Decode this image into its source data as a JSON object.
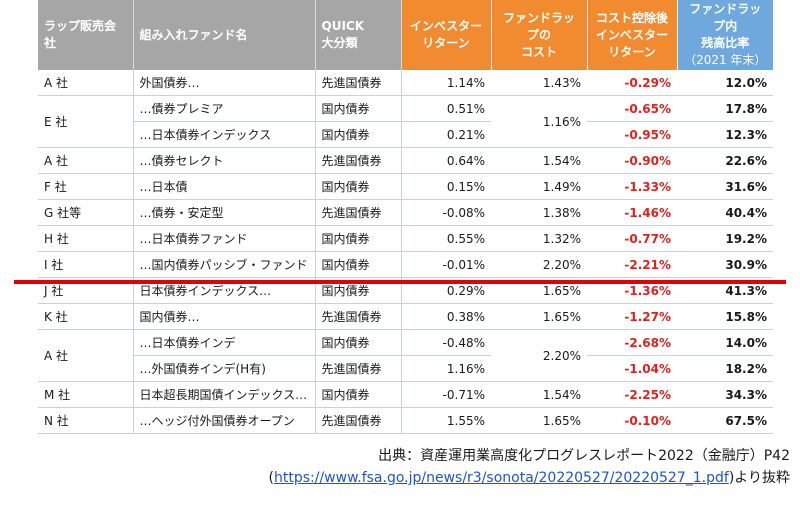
{
  "headers": {
    "company": "ラップ販売会社",
    "fund": "組み入れファンド名",
    "quick_1": "QUICK",
    "quick_2": "大分類",
    "investor_1": "インベスター",
    "investor_2": "リターン",
    "cost_1": "ファンドラップの",
    "cost_2": "コスト",
    "net_1": "コスト控除後",
    "net_2": "インベスター",
    "net_3": "リターン",
    "remain_1": "ファンドラップ内",
    "remain_2": "残高比率",
    "remain_3": "（2021 年末）"
  },
  "rows": [
    {
      "company": "A 社",
      "fund": "外国債券…",
      "category": "先進国債券",
      "investor": "1.14%",
      "cost": "1.43%",
      "net": "-0.29%",
      "remain": "12.0%"
    },
    {
      "company": "E 社",
      "fund": "…債券プレミア",
      "category": "国内債券",
      "investor": "0.51%",
      "cost": "1.16%",
      "net": "-0.65%",
      "remain": "17.8%"
    },
    {
      "fund": "…日本債券インデックス",
      "category": "国内債券",
      "investor": "0.21%",
      "net": "-0.95%",
      "remain": "12.3%"
    },
    {
      "company": "A 社",
      "fund": "…債券セレクト",
      "category": "先進国債券",
      "investor": "0.64%",
      "cost": "1.54%",
      "net": "-0.90%",
      "remain": "22.6%"
    },
    {
      "company": "F 社",
      "fund": "…日本債",
      "category": "国内債券",
      "investor": "0.15%",
      "cost": "1.49%",
      "net": "-1.33%",
      "remain": "31.6%"
    },
    {
      "company": "G 社等",
      "fund": "…債券・安定型",
      "category": "先進国債券",
      "investor": "-0.08%",
      "cost": "1.38%",
      "net": "-1.46%",
      "remain": "40.4%"
    },
    {
      "company": "H 社",
      "fund": "…日本債券ファンド",
      "category": "国内債券",
      "investor": "0.55%",
      "cost": "1.32%",
      "net": "-0.77%",
      "remain": "19.2%"
    },
    {
      "company": "I 社",
      "fund": "…国内債券パッシブ・ファンド",
      "category": "国内債券",
      "investor": "-0.01%",
      "cost": "2.20%",
      "net": "-2.21%",
      "remain": "30.9%"
    },
    {
      "company": "J 社",
      "fund": "日本債券インデックス…",
      "category": "国内債券",
      "investor": "0.29%",
      "cost": "1.65%",
      "net": "-1.36%",
      "remain": "41.3%"
    },
    {
      "company": "K 社",
      "fund": "国内債券…",
      "category": "先進国債券",
      "investor": "0.38%",
      "cost": "1.65%",
      "net": "-1.27%",
      "remain": "15.8%"
    },
    {
      "company": "A 社",
      "fund": "…日本債券インデ",
      "category": "国内債券",
      "investor": "-0.48%",
      "cost": "2.20%",
      "net": "-2.68%",
      "remain": "14.0%"
    },
    {
      "fund": "…外国債券インデ(H有)",
      "category": "先進国債券",
      "investor": "1.16%",
      "net": "-1.04%",
      "remain": "18.2%"
    },
    {
      "company": "M 社",
      "fund": "日本超長期国債インデックス…",
      "category": "国内債券",
      "investor": "-0.71%",
      "cost": "1.54%",
      "net": "-2.25%",
      "remain": "34.3%"
    },
    {
      "company": "N 社",
      "fund": "…ヘッジ付外国債券オープン",
      "category": "先進国債券",
      "investor": "1.55%",
      "cost": "1.65%",
      "net": "-0.10%",
      "remain": "67.5%"
    }
  ],
  "source": {
    "line1": "出典：資産運用業高度化プログレスレポート2022（金融庁）P42",
    "open": "(",
    "url": "https://www.fsa.go.jp/news/r3/sonota/20220527/20220527_1.pdf",
    "close": ")より抜粋"
  }
}
